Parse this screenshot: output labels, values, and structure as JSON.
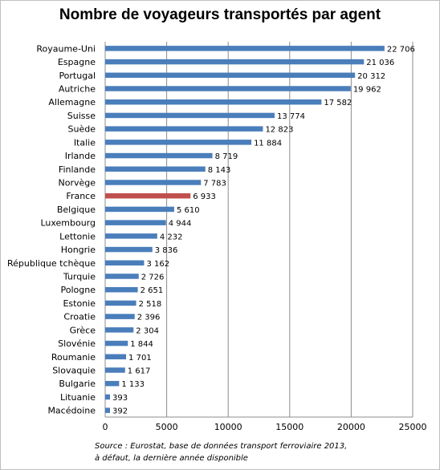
{
  "chart_data": {
    "type": "bar",
    "orientation": "horizontal",
    "title": "Nombre de voyageurs transportés par agent",
    "categories": [
      "Royaume-Uni",
      "Espagne",
      "Portugal",
      "Autriche",
      "Allemagne",
      "Suisse",
      "Suède",
      "Italie",
      "Irlande",
      "Finlande",
      "Norvège",
      "France",
      "Belgique",
      "Luxembourg",
      "Lettonie",
      "Hongrie",
      "République tchèque",
      "Turquie",
      "Pologne",
      "Estonie",
      "Croatie",
      "Grèce",
      "Slovénie",
      "Roumanie",
      "Slovaquie",
      "Bulgarie",
      "Lituanie",
      "Macédoine"
    ],
    "values": [
      22706,
      21036,
      20312,
      19962,
      17582,
      13774,
      12823,
      11884,
      8719,
      8143,
      7783,
      6933,
      5610,
      4944,
      4232,
      3836,
      3162,
      2726,
      2651,
      2518,
      2396,
      2304,
      1844,
      1701,
      1617,
      1133,
      393,
      392
    ],
    "value_labels": [
      "22 706",
      "21 036",
      "20 312",
      "19 962",
      "17 582",
      "13 774",
      "12 823",
      "11 884",
      "8 719",
      "8 143",
      "7 783",
      "6 933",
      "5 610",
      "4 944",
      "4 232",
      "3 836",
      "3 162",
      "2 726",
      "2 651",
      "2 518",
      "2 396",
      "2 304",
      "1 844",
      "1 701",
      "1 617",
      "1 133",
      "393",
      "392"
    ],
    "xlim": [
      0,
      25000
    ],
    "xticks": [
      0,
      5000,
      10000,
      15000,
      20000,
      25000
    ],
    "xtick_labels": [
      "0",
      "5000",
      "10000",
      "15000",
      "20000",
      "25000"
    ],
    "grid": "vertical",
    "legend": "none",
    "highlight_category": "France",
    "colors": {
      "bar": "#4a7ebb",
      "highlight": "#c0504d",
      "grid": "#8c8c8c"
    },
    "source_lines": [
      "Source : Eurostat, base de données transport ferroviaire 2013,",
      "à défaut, la dernière année disponible"
    ]
  }
}
